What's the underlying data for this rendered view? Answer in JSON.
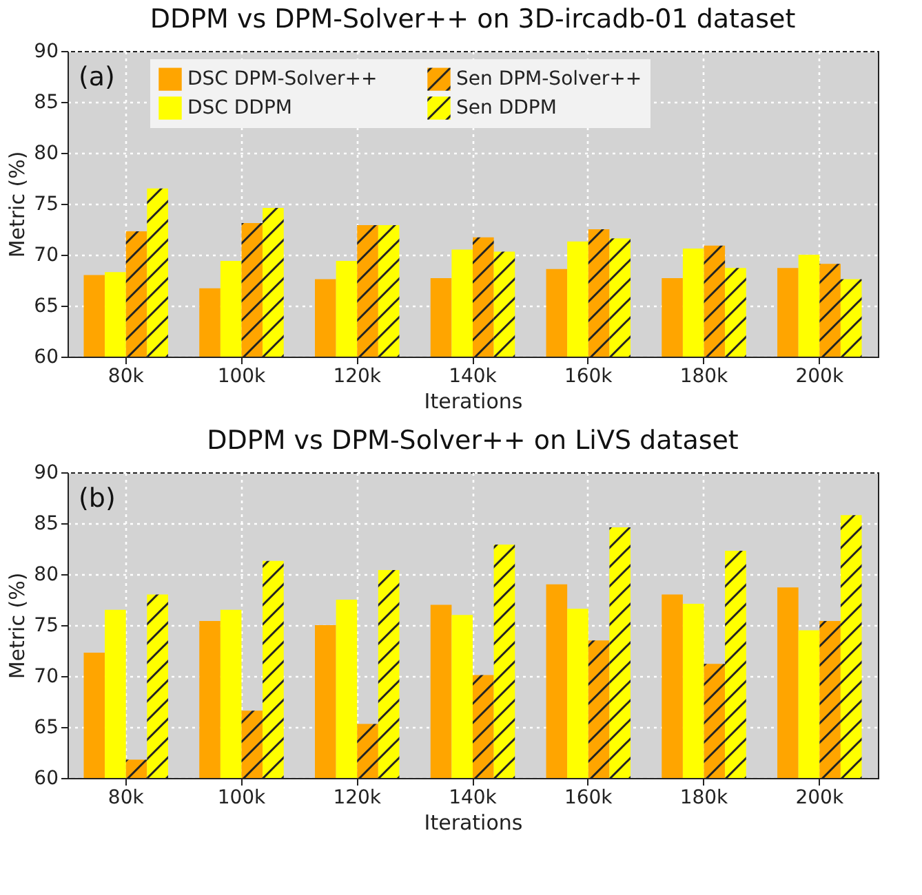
{
  "chart_data": [
    {
      "type": "bar",
      "title": "DDPM vs DPM-Solver++ on 3D-ircadb-01 dataset",
      "xlabel": "Iterations",
      "ylabel": "Metric (%)",
      "annotations": [
        "(a)"
      ],
      "categories": [
        "80k",
        "100k",
        "120k",
        "140k",
        "160k",
        "180k",
        "200k"
      ],
      "ylim": [
        60,
        90
      ],
      "yticks": [
        60,
        65,
        70,
        75,
        80,
        85,
        90
      ],
      "grid": true,
      "legend": "top",
      "series": [
        {
          "name": "DSC DPM-Solver++",
          "color": "#ffa500",
          "values": [
            68.0,
            66.7,
            67.6,
            67.7,
            68.6,
            67.7,
            68.7
          ]
        },
        {
          "name": "DSC DDPM",
          "color": "#ffff00",
          "values": [
            68.3,
            69.4,
            69.4,
            70.5,
            71.3,
            70.6,
            70.0
          ]
        },
        {
          "name": "Sen DPM-Solver++",
          "color": "#ffa500",
          "values": [
            72.3,
            73.1,
            72.9,
            71.7,
            72.5,
            70.9,
            69.1
          ]
        },
        {
          "name": "Sen DDPM",
          "color": "#ffff00",
          "values": [
            76.5,
            74.6,
            72.9,
            70.3,
            71.6,
            68.7,
            67.6
          ]
        }
      ]
    },
    {
      "type": "bar",
      "title": "DDPM vs DPM-Solver++ on LiVS dataset",
      "xlabel": "Iterations",
      "ylabel": "Metric (%)",
      "annotations": [
        "(b)"
      ],
      "categories": [
        "80k",
        "100k",
        "120k",
        "140k",
        "160k",
        "180k",
        "200k"
      ],
      "ylim": [
        60,
        90
      ],
      "yticks": [
        60,
        65,
        70,
        75,
        80,
        85,
        90
      ],
      "grid": true,
      "series": [
        {
          "color": "#ffa500",
          "values": [
            72.3,
            75.4,
            75.0,
            77.0,
            79.0,
            78.0,
            78.7
          ]
        },
        {
          "color": "#ffff00",
          "values": [
            76.5,
            76.5,
            77.5,
            76.0,
            76.6,
            77.1,
            74.5
          ]
        },
        {
          "color": "#ffa500",
          "values": [
            61.8,
            66.6,
            65.3,
            70.1,
            73.5,
            71.2,
            75.4
          ]
        },
        {
          "color": "#ffff00",
          "values": [
            78.0,
            81.3,
            80.4,
            82.9,
            84.6,
            82.3,
            85.8
          ]
        }
      ]
    }
  ]
}
